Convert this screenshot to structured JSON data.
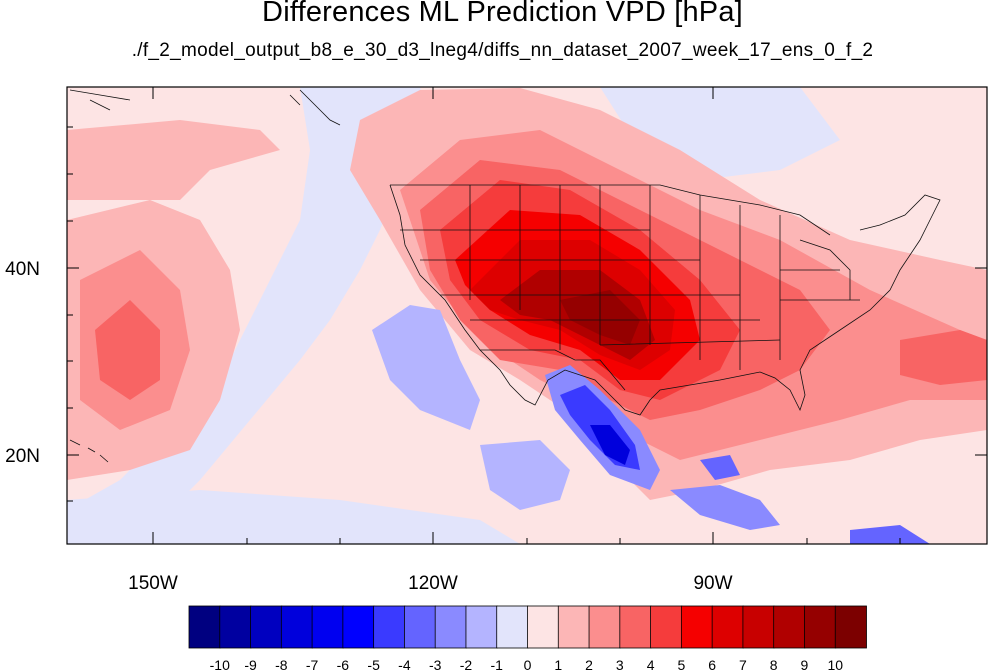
{
  "title": "Differences ML Prediction VPD [hPa]",
  "subtitle": "./f_2_model_output_b8_e_30_d3_lneg4/diffs_nn_dataset_2007_week_17_ens_0_f_2",
  "axes": {
    "x_ticks": [
      "150W",
      "120W",
      "90W"
    ],
    "y_ticks": [
      "40N",
      "20N"
    ]
  },
  "colorbar": {
    "labels": [
      "-10",
      "-9",
      "-8",
      "-7",
      "-6",
      "-5",
      "-4",
      "-3",
      "-2",
      "-1",
      "0",
      "1",
      "2",
      "3",
      "4",
      "5",
      "6",
      "7",
      "8",
      "9",
      "10"
    ],
    "colors": [
      "#000080",
      "#0000a0",
      "#0000c0",
      "#0000dc",
      "#0000f0",
      "#0000ff",
      "#3a3aff",
      "#6464ff",
      "#8a8aff",
      "#b4b4ff",
      "#e2e4fb",
      "#fde4e4",
      "#fcb6b6",
      "#fb8e8e",
      "#f86464",
      "#f53c3c",
      "#f50000",
      "#dd0000",
      "#c80000",
      "#b00000",
      "#950000",
      "#7c0000"
    ]
  }
}
